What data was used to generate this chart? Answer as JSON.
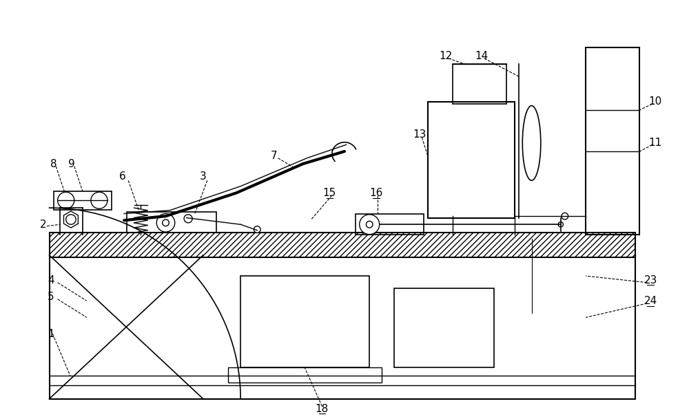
{
  "bg_color": "#ffffff",
  "line_color": "#000000",
  "fig_width": 10.0,
  "fig_height": 6.09,
  "lw": 1.0
}
